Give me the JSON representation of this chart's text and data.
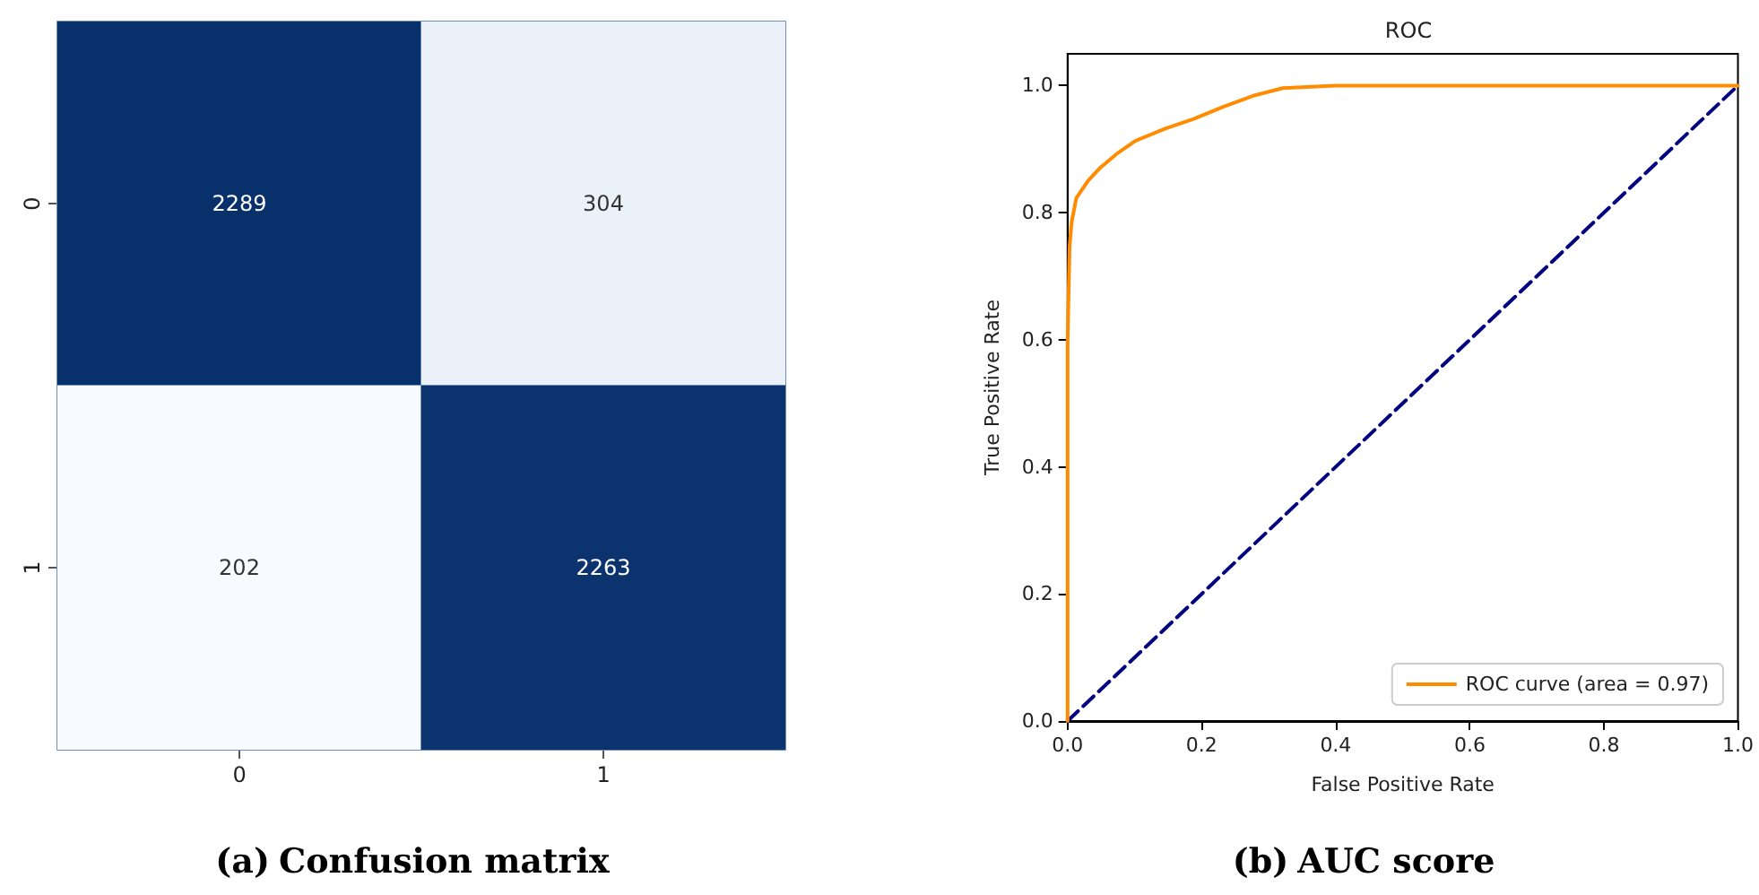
{
  "chart_data": [
    {
      "type": "heatmap",
      "title": "(a) Confusion matrix",
      "categories": [
        "0",
        "1"
      ],
      "y_categories": [
        "0",
        "1"
      ],
      "cells": [
        [
          2289,
          304
        ],
        [
          202,
          2263
        ]
      ],
      "data_labels": true
    },
    {
      "type": "line",
      "title": "ROC",
      "annotations": [
        "(b) AUC score"
      ],
      "xlabel": "False Positive Rate",
      "ylabel": "True Positive Rate",
      "xlim": [
        0,
        1
      ],
      "ylim": [
        0,
        1.05
      ],
      "xticks": [
        {
          "value": 0,
          "label": "0.0"
        },
        {
          "value": 0.2,
          "label": "0.2"
        },
        {
          "value": 0.4,
          "label": "0.4"
        },
        {
          "value": 0.6,
          "label": "0.6"
        },
        {
          "value": 0.8,
          "label": "0.8"
        },
        {
          "value": 1,
          "label": "1.0"
        }
      ],
      "yticks": [
        {
          "value": 0,
          "label": "0.0"
        },
        {
          "value": 0.2,
          "label": "0.2"
        },
        {
          "value": 0.4,
          "label": "0.4"
        },
        {
          "value": 0.6,
          "label": "0.6"
        },
        {
          "value": 0.8,
          "label": "0.8"
        },
        {
          "value": 1,
          "label": "1.0"
        }
      ],
      "legend": "bottom right",
      "grid": false,
      "series": [
        {
          "name": "ROC curve (area = 0.97)",
          "color": "#ff8c00",
          "line_style": "solid",
          "x": [
            0,
            0,
            0.003,
            0.006,
            0.013,
            0.031,
            0.048,
            0.075,
            0.101,
            0.145,
            0.189,
            0.233,
            0.277,
            0.321,
            0.4,
            1
          ],
          "values": [
            0,
            0.595,
            0.747,
            0.785,
            0.823,
            0.851,
            0.87,
            0.894,
            0.913,
            0.932,
            0.948,
            0.967,
            0.984,
            0.996,
            1,
            1
          ]
        },
        {
          "color": "#000080",
          "line_style": "dashed",
          "x": [
            0,
            1
          ],
          "values": [
            0,
            1
          ]
        }
      ]
    }
  ]
}
